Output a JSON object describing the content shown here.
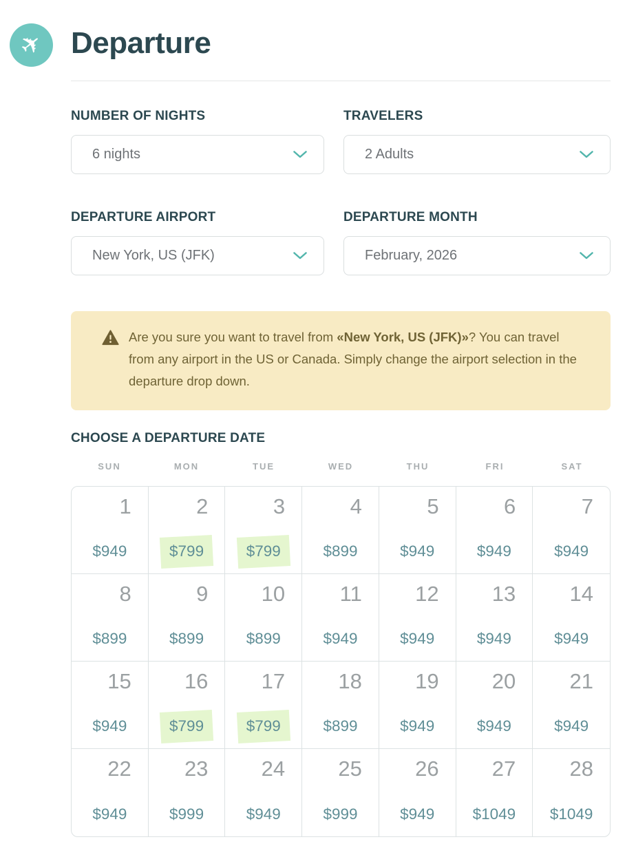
{
  "header": {
    "title": "Departure",
    "icon": "plane-icon"
  },
  "form": {
    "fields": [
      {
        "label": "NUMBER OF NIGHTS",
        "value": "6 nights"
      },
      {
        "label": "TRAVELERS",
        "value": "2 Adults"
      },
      {
        "label": "DEPARTURE AIRPORT",
        "value": "New York, US (JFK)"
      },
      {
        "label": "DEPARTURE MONTH",
        "value": "February, 2026"
      }
    ]
  },
  "warning": {
    "icon": "warning-icon",
    "text_before": "Are you sure you want to travel from ",
    "bold_text": "«New York, US (JFK)»",
    "text_after": "? You can travel from any airport in the US or Canada. Simply change the airport selection in the departure drop down."
  },
  "calendar": {
    "title": "CHOOSE A DEPARTURE DATE",
    "day_headers": [
      "SUN",
      "MON",
      "TUE",
      "WED",
      "THU",
      "FRI",
      "SAT"
    ],
    "weeks": [
      [
        {
          "date": "1",
          "price": "$949",
          "highlighted": false
        },
        {
          "date": "2",
          "price": "$799",
          "highlighted": true
        },
        {
          "date": "3",
          "price": "$799",
          "highlighted": true
        },
        {
          "date": "4",
          "price": "$899",
          "highlighted": false
        },
        {
          "date": "5",
          "price": "$949",
          "highlighted": false
        },
        {
          "date": "6",
          "price": "$949",
          "highlighted": false
        },
        {
          "date": "7",
          "price": "$949",
          "highlighted": false
        }
      ],
      [
        {
          "date": "8",
          "price": "$899",
          "highlighted": false
        },
        {
          "date": "9",
          "price": "$899",
          "highlighted": false
        },
        {
          "date": "10",
          "price": "$899",
          "highlighted": false
        },
        {
          "date": "11",
          "price": "$949",
          "highlighted": false
        },
        {
          "date": "12",
          "price": "$949",
          "highlighted": false
        },
        {
          "date": "13",
          "price": "$949",
          "highlighted": false
        },
        {
          "date": "14",
          "price": "$949",
          "highlighted": false
        }
      ],
      [
        {
          "date": "15",
          "price": "$949",
          "highlighted": false
        },
        {
          "date": "16",
          "price": "$799",
          "highlighted": true
        },
        {
          "date": "17",
          "price": "$799",
          "highlighted": true
        },
        {
          "date": "18",
          "price": "$899",
          "highlighted": false
        },
        {
          "date": "19",
          "price": "$949",
          "highlighted": false
        },
        {
          "date": "20",
          "price": "$949",
          "highlighted": false
        },
        {
          "date": "21",
          "price": "$949",
          "highlighted": false
        }
      ],
      [
        {
          "date": "22",
          "price": "$949",
          "highlighted": false
        },
        {
          "date": "23",
          "price": "$999",
          "highlighted": false
        },
        {
          "date": "24",
          "price": "$949",
          "highlighted": false
        },
        {
          "date": "25",
          "price": "$999",
          "highlighted": false
        },
        {
          "date": "26",
          "price": "$949",
          "highlighted": false
        },
        {
          "date": "27",
          "price": "$1049",
          "highlighted": false
        },
        {
          "date": "28",
          "price": "$1049",
          "highlighted": false
        }
      ]
    ]
  },
  "colors": {
    "teal": "#6FC7C0",
    "teal-accent": "#52B5AC",
    "dark-slate": "#2C4850",
    "select-text": "#6E7276",
    "select-border": "#DADEDF",
    "warn-bg": "#F8EBC4",
    "warn-text": "#6F6335",
    "day-gray": "#A9AEB0",
    "date-gray": "#9BA0A2",
    "price-teal": "#5F8E96",
    "grid-border": "#DCE2E3",
    "highlight": "#E5F6CF"
  }
}
